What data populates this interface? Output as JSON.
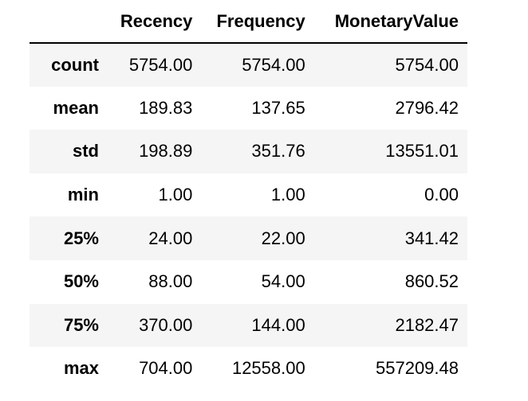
{
  "table": {
    "index_header": "",
    "columns": [
      "Recency",
      "Frequency",
      "MonetaryValue"
    ],
    "rows": [
      {
        "label": "count",
        "values": [
          "5754.00",
          "5754.00",
          "5754.00"
        ]
      },
      {
        "label": "mean",
        "values": [
          "189.83",
          "137.65",
          "2796.42"
        ]
      },
      {
        "label": "std",
        "values": [
          "198.89",
          "351.76",
          "13551.01"
        ]
      },
      {
        "label": "min",
        "values": [
          "1.00",
          "1.00",
          "0.00"
        ]
      },
      {
        "label": "25%",
        "values": [
          "24.00",
          "22.00",
          "341.42"
        ]
      },
      {
        "label": "50%",
        "values": [
          "88.00",
          "54.00",
          "860.52"
        ]
      },
      {
        "label": "75%",
        "values": [
          "370.00",
          "144.00",
          "2182.47"
        ]
      },
      {
        "label": "max",
        "values": [
          "704.00",
          "12558.00",
          "557209.48"
        ]
      }
    ]
  }
}
